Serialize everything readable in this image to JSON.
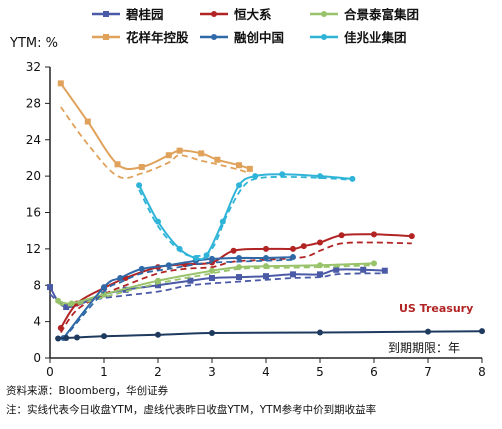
{
  "chart_data": {
    "type": "line",
    "ylabel": "YTM: %",
    "xlabel": "到期期限：年",
    "xlim": [
      0,
      8
    ],
    "ylim": [
      0,
      32
    ],
    "x_ticks": [
      0,
      1,
      2,
      3,
      4,
      5,
      6,
      7,
      8
    ],
    "y_ticks": [
      0,
      4,
      8,
      12,
      16,
      20,
      24,
      28,
      32
    ],
    "grid": false,
    "legend_position": "top",
    "line_styles": {
      "solid": "today",
      "dashed": "yesterday"
    },
    "series": [
      {
        "name": "碧桂园",
        "color": "#4b5aa6",
        "marker": "square",
        "today": [
          [
            0,
            7.8
          ],
          [
            0.3,
            5.6
          ],
          [
            1,
            7
          ],
          [
            1.4,
            7.5
          ],
          [
            2,
            8
          ],
          [
            2.6,
            8.5
          ],
          [
            3,
            8.8
          ],
          [
            3.5,
            8.9
          ],
          [
            4,
            9
          ],
          [
            4.5,
            9.2
          ],
          [
            5,
            9.2
          ],
          [
            5.3,
            9.7
          ],
          [
            5.8,
            9.7
          ],
          [
            6.2,
            9.6
          ]
        ],
        "yesterday": [
          [
            0,
            7
          ],
          [
            0.3,
            5.9
          ],
          [
            1,
            6.6
          ],
          [
            2,
            7.3
          ],
          [
            2.6,
            8
          ],
          [
            3.5,
            8.4
          ],
          [
            4,
            8.6
          ],
          [
            4.5,
            8.8
          ],
          [
            5,
            8.9
          ],
          [
            5.3,
            9.2
          ],
          [
            5.8,
            9.3
          ],
          [
            6.2,
            9.3
          ]
        ]
      },
      {
        "name": "恒大系",
        "color": "#b22424",
        "marker": "circle",
        "today": [
          [
            0.2,
            3.3
          ],
          [
            0.5,
            6
          ],
          [
            1,
            7.7
          ],
          [
            1.4,
            8.8
          ],
          [
            2,
            10
          ],
          [
            2.5,
            10.3
          ],
          [
            3,
            10.5
          ],
          [
            3.4,
            11.8
          ],
          [
            4,
            12
          ],
          [
            4.5,
            12
          ],
          [
            4.7,
            12.3
          ],
          [
            5,
            12.7
          ],
          [
            5.4,
            13.5
          ],
          [
            6,
            13.6
          ],
          [
            6.7,
            13.4
          ]
        ],
        "yesterday": [
          [
            0.2,
            2.8
          ],
          [
            0.5,
            5.3
          ],
          [
            1,
            7
          ],
          [
            1.4,
            8
          ],
          [
            2,
            9.3
          ],
          [
            2.5,
            9.8
          ],
          [
            3,
            10
          ],
          [
            3.4,
            10.6
          ],
          [
            4,
            10.8
          ],
          [
            4.7,
            11.1
          ],
          [
            5,
            11.8
          ],
          [
            5.4,
            12.6
          ],
          [
            6,
            12.7
          ],
          [
            6.7,
            12.6
          ]
        ]
      },
      {
        "name": "合景泰富集团",
        "color": "#98c36a",
        "marker": "circle",
        "today": [
          [
            0.15,
            6.3
          ],
          [
            0.4,
            6
          ],
          [
            1,
            7
          ],
          [
            2,
            8.5
          ],
          [
            3,
            9.6
          ],
          [
            3.5,
            10
          ],
          [
            4,
            10.1
          ],
          [
            5,
            10.2
          ],
          [
            6,
            10.4
          ]
        ],
        "yesterday": [
          [
            0.15,
            6
          ],
          [
            0.4,
            5.8
          ],
          [
            1,
            6.7
          ],
          [
            2,
            8.2
          ],
          [
            3,
            9.3
          ],
          [
            3.5,
            9.8
          ],
          [
            4,
            9.9
          ],
          [
            5,
            10
          ],
          [
            6,
            10.2
          ]
        ]
      },
      {
        "name": "花样年控股",
        "color": "#e0a25a",
        "marker": "square",
        "today": [
          [
            0.2,
            30.2
          ],
          [
            0.7,
            26
          ],
          [
            1.25,
            21.3
          ],
          [
            1.7,
            21
          ],
          [
            2.2,
            22.3
          ],
          [
            2.4,
            22.8
          ],
          [
            2.8,
            22.5
          ],
          [
            3.1,
            21.8
          ],
          [
            3.5,
            21.2
          ],
          [
            3.7,
            20.8
          ]
        ],
        "yesterday": [
          [
            0.2,
            27.6
          ],
          [
            0.7,
            23.5
          ],
          [
            1.25,
            20
          ],
          [
            1.7,
            20.3
          ],
          [
            2.2,
            21.5
          ],
          [
            2.4,
            22.3
          ],
          [
            2.8,
            21.7
          ],
          [
            3.1,
            21.3
          ],
          [
            3.5,
            20.7
          ],
          [
            3.7,
            20.3
          ]
        ]
      },
      {
        "name": "融创中国",
        "color": "#2f69a8",
        "marker": "circle",
        "today": [
          [
            0.25,
            2.2
          ],
          [
            1,
            7.8
          ],
          [
            1.3,
            8.8
          ],
          [
            1.7,
            9.8
          ],
          [
            2.2,
            10.2
          ],
          [
            2.7,
            10.7
          ],
          [
            3,
            10.9
          ],
          [
            3.5,
            11
          ],
          [
            4,
            11
          ],
          [
            4.5,
            11.1
          ]
        ],
        "yesterday": [
          [
            0.25,
            2.1
          ],
          [
            1,
            7.3
          ],
          [
            1.3,
            8.3
          ],
          [
            1.7,
            9.3
          ],
          [
            2.2,
            9.8
          ],
          [
            2.7,
            10.3
          ],
          [
            3,
            10.5
          ],
          [
            3.5,
            10.6
          ],
          [
            4,
            10.7
          ],
          [
            4.5,
            10.8
          ]
        ]
      },
      {
        "name": "佳兆业集团",
        "color": "#2fb4d8",
        "marker": "circle",
        "today": [
          [
            1.65,
            19
          ],
          [
            2,
            15
          ],
          [
            2.4,
            12
          ],
          [
            2.7,
            11
          ],
          [
            2.9,
            11.3
          ],
          [
            3.2,
            15
          ],
          [
            3.5,
            19
          ],
          [
            3.8,
            20
          ],
          [
            4.3,
            20.2
          ],
          [
            5,
            20
          ],
          [
            5.6,
            19.7
          ]
        ],
        "yesterday": [
          [
            1.65,
            18.5
          ],
          [
            2,
            14.5
          ],
          [
            2.4,
            11.8
          ],
          [
            2.7,
            11.2
          ],
          [
            3,
            12
          ],
          [
            3.3,
            16
          ],
          [
            3.6,
            19
          ],
          [
            3.9,
            19.8
          ],
          [
            4.5,
            19.9
          ],
          [
            5,
            19.8
          ],
          [
            5.6,
            19.6
          ]
        ]
      },
      {
        "name": "US Treasury",
        "color": "#1f3a5f",
        "marker": "circle",
        "today": [
          [
            0.15,
            2.15
          ],
          [
            0.3,
            2.2
          ],
          [
            0.5,
            2.25
          ],
          [
            1,
            2.4
          ],
          [
            2,
            2.55
          ],
          [
            3,
            2.75
          ],
          [
            5,
            2.8
          ],
          [
            7,
            2.9
          ],
          [
            8,
            2.95
          ]
        ]
      }
    ],
    "annotations": [
      {
        "text": "US Treasury",
        "color": "#b22424"
      }
    ]
  },
  "footnotes": {
    "source": "资料来源：Bloomberg，华创证券",
    "note": "注：实线代表今日收盘YTM，虚线代表昨日收盘YTM，YTM参考中价到期收益率"
  }
}
